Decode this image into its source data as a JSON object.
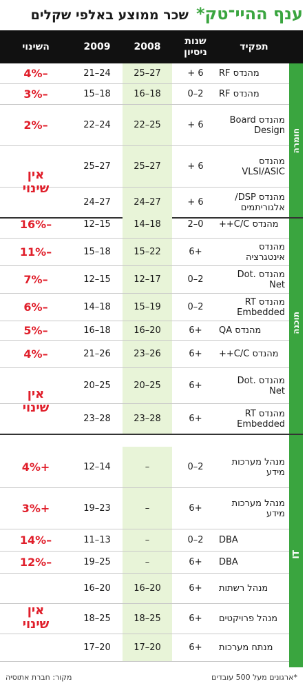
{
  "title": {
    "main": "ענף ההיי־טק",
    "star": "*",
    "subtitle": "שכר ממוצע באלפי שקלים"
  },
  "headers": {
    "role": "תפקיד",
    "experience": "שנות ניסיון",
    "y2008": "2008",
    "y2009": "2009",
    "change": "השינוי"
  },
  "sections": [
    {
      "label": "חומרה",
      "rows": [
        {
          "role": "מהנדס RF",
          "exp": "6 +",
          "y2008": "27–25",
          "y2009": "24–21",
          "change": "–4%"
        },
        {
          "role": "מהנדס RF",
          "exp": "2–0",
          "y2008": "18–16",
          "y2009": "18–15",
          "change": "–3%"
        },
        {
          "role": "מהנדס Board Design",
          "exp": "6 +",
          "y2008": "25–22",
          "y2009": "24–22",
          "change": "–2%"
        },
        {
          "role": "מהנדס VLSI/ASIC",
          "exp": "6 +",
          "y2008": "27–25",
          "y2009": "27–25",
          "change": ""
        },
        {
          "role": "מהנדס DSP/ אלגוריתמים",
          "exp": "6 +",
          "y2008": "27–24",
          "y2009": "27–24",
          "change": ""
        }
      ],
      "merged_change": "אין שינוי"
    },
    {
      "label": "תוכנה",
      "rows": [
        {
          "role": "מהנדס C/C++",
          "exp": "0–2",
          "y2008": "18–14",
          "y2009": "15–12",
          "change": "–16%"
        },
        {
          "role": "מהנדס אינטגרציה",
          "exp": "+6",
          "y2008": "22–15",
          "y2009": "18–15",
          "change": "–11%"
        },
        {
          "role": "מהנדס .Dot Net",
          "exp": "2–0",
          "y2008": "17–12",
          "y2009": "15–12",
          "change": "–7%"
        },
        {
          "role": "מהנדס RT Embedded",
          "exp": "2–0",
          "y2008": "19–15",
          "y2009": "18–14",
          "change": "–6%"
        },
        {
          "role": "מהנדס QA",
          "exp": "+6",
          "y2008": "20–16",
          "y2009": "18–16",
          "change": "–5%"
        },
        {
          "role": "מהנדס C/C++",
          "exp": "+6",
          "y2008": "26–23",
          "y2009": "26–21",
          "change": "–4%"
        },
        {
          "role": "מהנדס .Dot Net",
          "exp": "+6",
          "y2008": "25–20",
          "y2009": "25–20",
          "change": ""
        },
        {
          "role": "מהנדס RT Embedded",
          "exp": "+6",
          "y2008": "28–23",
          "y2009": "28–23",
          "change": ""
        }
      ],
      "merged_change": "אין שינוי"
    },
    {
      "label": "IT",
      "rows": [
        {
          "role": "מנהל מערכות מידע",
          "exp": "2–0",
          "y2008": "–",
          "y2009": "14–12",
          "change": "+4%"
        },
        {
          "role": "מנהל מערכות מידע",
          "exp": "+6",
          "y2008": "–",
          "y2009": "23–19",
          "change": "+3%"
        },
        {
          "role": "DBA",
          "exp": "2–0",
          "y2008": "–",
          "y2009": "13–11",
          "change": "–14%"
        },
        {
          "role": "DBA",
          "exp": "+6",
          "y2008": "–",
          "y2009": "25–19",
          "change": "–12%"
        },
        {
          "role": "מנהל רשתות",
          "exp": "+6",
          "y2008": "20–16",
          "y2009": "20–16",
          "change": ""
        },
        {
          "role": "מנהל פרויקטים",
          "exp": "+6",
          "y2008": "25–18",
          "y2009": "25–18",
          "change": ""
        },
        {
          "role": "מנתח מערכות",
          "exp": "+6",
          "y2008": "20–17",
          "y2009": "20–17",
          "change": ""
        }
      ],
      "merged_change": "אין שינוי"
    }
  ],
  "footer": {
    "source": "מקור: חברת אתוסיה",
    "note": "*ארגונים מעל 500 עובדים"
  }
}
